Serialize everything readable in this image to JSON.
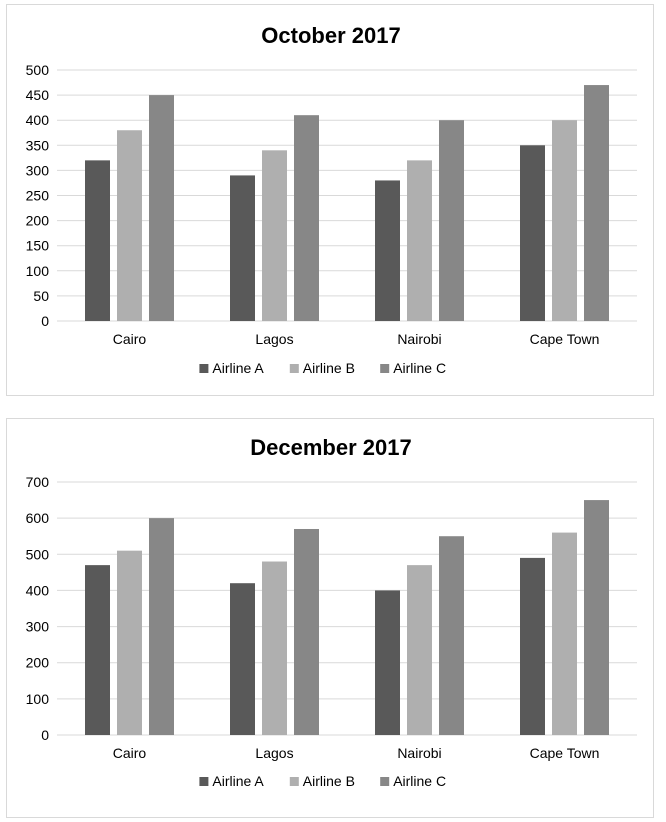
{
  "chart_data": [
    {
      "type": "bar",
      "title": "October 2017",
      "categories": [
        "Cairo",
        "Lagos",
        "Nairobi",
        "Cape Town"
      ],
      "series": [
        {
          "name": "Airline A",
          "values": [
            320,
            290,
            280,
            350
          ],
          "color": "#595959"
        },
        {
          "name": "Airline B",
          "values": [
            380,
            340,
            320,
            400
          ],
          "color": "#afafaf"
        },
        {
          "name": "Airline C",
          "values": [
            450,
            410,
            400,
            470
          ],
          "color": "#878787"
        }
      ],
      "ylim": [
        0,
        500
      ],
      "yticks": [
        0,
        50,
        100,
        150,
        200,
        250,
        300,
        350,
        400,
        450,
        500
      ],
      "grid": true,
      "legend": "bottom",
      "xlabel": "",
      "ylabel": ""
    },
    {
      "type": "bar",
      "title": "December 2017",
      "categories": [
        "Cairo",
        "Lagos",
        "Nairobi",
        "Cape Town"
      ],
      "series": [
        {
          "name": "Airline A",
          "values": [
            470,
            420,
            400,
            490
          ],
          "color": "#595959"
        },
        {
          "name": "Airline B",
          "values": [
            510,
            480,
            470,
            560
          ],
          "color": "#afafaf"
        },
        {
          "name": "Airline C",
          "values": [
            600,
            570,
            550,
            650
          ],
          "color": "#878787"
        }
      ],
      "ylim": [
        0,
        700
      ],
      "yticks": [
        0,
        100,
        200,
        300,
        400,
        500,
        600,
        700
      ],
      "grid": true,
      "legend": "bottom",
      "xlabel": "",
      "ylabel": ""
    }
  ]
}
